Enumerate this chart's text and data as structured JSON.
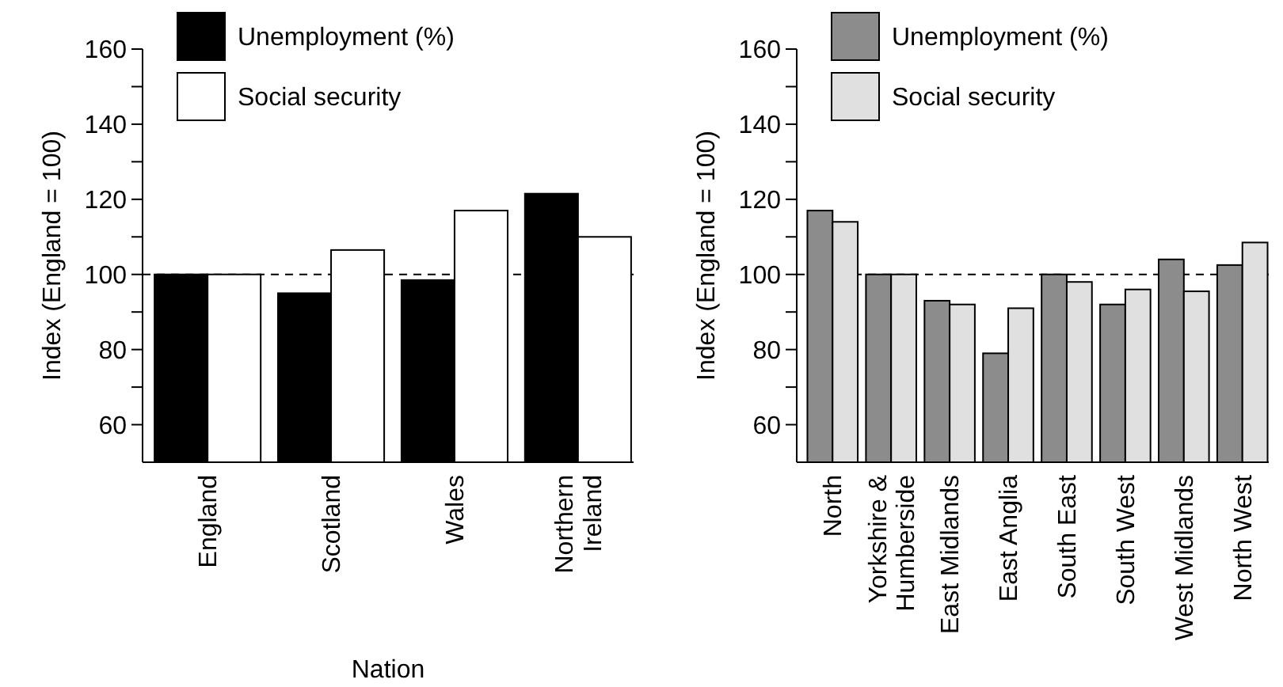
{
  "chart_data": [
    {
      "type": "bar",
      "xlabel": "Nation",
      "ylabel": "Index (England = 100)",
      "categories": [
        "England",
        "Scotland",
        "Wales",
        "Northern\nIreland"
      ],
      "series": [
        {
          "name": "Unemployment (%)",
          "color": "#000000",
          "values": [
            100,
            95,
            98.5,
            121.5
          ]
        },
        {
          "name": "Social security",
          "color": "#ffffff",
          "values": [
            100,
            106.5,
            117,
            110
          ]
        }
      ],
      "ylim": [
        50,
        160
      ],
      "yticks": [
        60,
        {
          "value": 70,
          "label": null
        },
        80,
        {
          "value": 90,
          "label": null
        },
        100,
        {
          "value": 110,
          "label": null
        },
        120,
        {
          "value": 130,
          "label": null
        },
        140,
        {
          "value": 150,
          "label": null
        },
        160
      ],
      "ref_lines": [
        {
          "axis": "y",
          "value": 100,
          "line_style": "dashed"
        }
      ],
      "legend": "top left",
      "grid": false
    },
    {
      "type": "bar",
      "ylabel": "Index (England = 100)",
      "categories": [
        "North",
        "Yorkshire &\nHumberside",
        "East Midlands",
        "East Anglia",
        "South East",
        "South West",
        "West Midlands",
        "North West"
      ],
      "series": [
        {
          "name": "Unemployment (%)",
          "color": "#8c8c8c",
          "values": [
            117,
            100,
            93,
            79,
            100,
            92,
            104,
            102.5
          ]
        },
        {
          "name": "Social security",
          "color": "#e0e0e0",
          "values": [
            114,
            100,
            92,
            91,
            98,
            96,
            95.5,
            108.5
          ]
        }
      ],
      "ylim": [
        50,
        160
      ],
      "yticks": [
        60,
        {
          "value": 70,
          "label": null
        },
        80,
        {
          "value": 90,
          "label": null
        },
        100,
        {
          "value": 110,
          "label": null
        },
        120,
        {
          "value": 130,
          "label": null
        },
        140,
        {
          "value": 150,
          "label": null
        },
        160
      ],
      "ref_lines": [
        {
          "axis": "y",
          "value": 100,
          "line_style": "dashed"
        }
      ],
      "legend": "top left",
      "grid": false
    }
  ]
}
